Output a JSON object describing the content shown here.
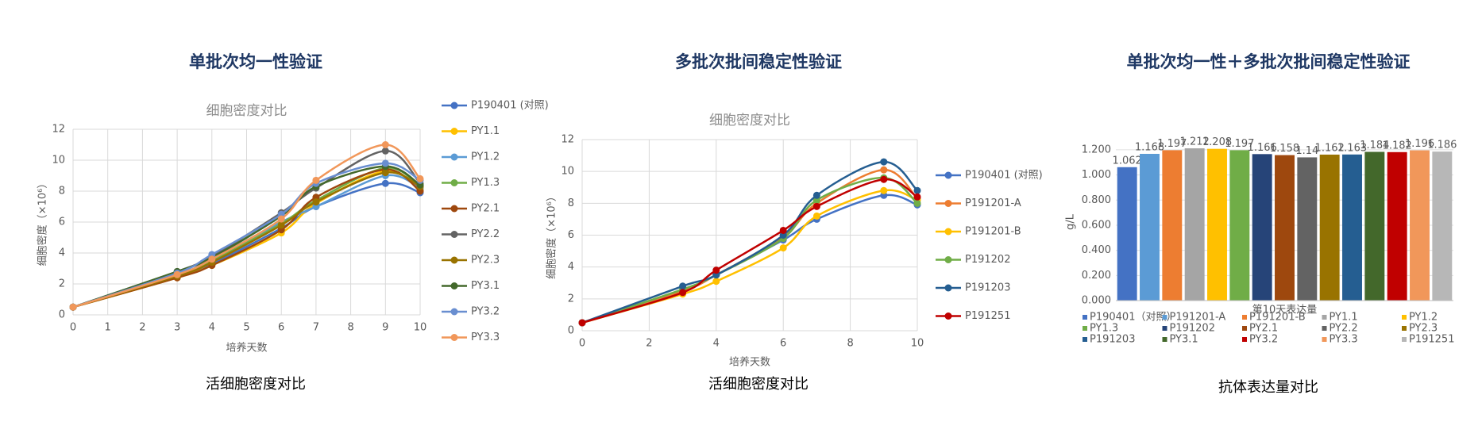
{
  "chart_data": [
    {
      "type": "line",
      "heading": "单批次均一性验证",
      "caption": "活细胞密度对比",
      "title": "细胞密度对比",
      "x_label": "培养天数",
      "y_label": "细胞密度（×10⁶）",
      "x": [
        0,
        3,
        4,
        6,
        7,
        9,
        10
      ],
      "xlim": [
        0,
        10
      ],
      "xticks": [
        0,
        1,
        2,
        3,
        4,
        5,
        6,
        7,
        8,
        9,
        10
      ],
      "ylim": [
        0,
        12
      ],
      "yticks": [
        0,
        2,
        4,
        6,
        8,
        10,
        12
      ],
      "grid": true,
      "series": [
        {
          "name": "P190401 (对照)",
          "color": "#4472c4",
          "values": [
            0.5,
            2.5,
            3.3,
            5.6,
            7.0,
            8.5,
            7.9
          ]
        },
        {
          "name": "PY1.1",
          "color": "#ffc000",
          "values": [
            0.5,
            2.4,
            3.2,
            5.3,
            7.2,
            9.3,
            8.1
          ]
        },
        {
          "name": "PY1.2",
          "color": "#5b9bd5",
          "values": [
            0.5,
            2.6,
            3.6,
            6.0,
            7.0,
            9.0,
            8.2
          ]
        },
        {
          "name": "PY1.3",
          "color": "#70ad47",
          "values": [
            0.5,
            2.6,
            3.5,
            5.9,
            7.4,
            9.5,
            8.3
          ]
        },
        {
          "name": "PY2.1",
          "color": "#9e480e",
          "values": [
            0.5,
            2.4,
            3.2,
            5.5,
            7.6,
            9.4,
            8.0
          ]
        },
        {
          "name": "PY2.2",
          "color": "#636363",
          "values": [
            0.5,
            2.8,
            3.8,
            6.6,
            8.2,
            10.6,
            8.5
          ]
        },
        {
          "name": "PY2.3",
          "color": "#997300",
          "values": [
            0.5,
            2.5,
            3.4,
            5.8,
            7.3,
            9.2,
            8.3
          ]
        },
        {
          "name": "PY3.1",
          "color": "#43682b",
          "values": [
            0.5,
            2.8,
            3.7,
            6.4,
            8.3,
            9.6,
            8.4
          ]
        },
        {
          "name": "PY3.2",
          "color": "#698ed0",
          "values": [
            0.5,
            2.7,
            3.9,
            6.5,
            8.5,
            9.8,
            8.7
          ]
        },
        {
          "name": "PY3.3",
          "color": "#f1975a",
          "values": [
            0.5,
            2.6,
            3.6,
            6.2,
            8.7,
            11.0,
            8.8
          ]
        }
      ]
    },
    {
      "type": "line",
      "heading": "多批次批间稳定性验证",
      "caption": "活细胞密度对比",
      "title": "细胞密度对比",
      "x_label": "培养天数",
      "y_label": "细胞密度（×10⁶）",
      "x": [
        0,
        3,
        4,
        6,
        7,
        9,
        10
      ],
      "xlim": [
        0,
        10
      ],
      "xticks": [
        0,
        2,
        4,
        6,
        8,
        10
      ],
      "ylim": [
        0,
        12
      ],
      "yticks": [
        0,
        2,
        4,
        6,
        8,
        10,
        12
      ],
      "grid": true,
      "series": [
        {
          "name": "P190401 (对照)",
          "color": "#4472c4",
          "values": [
            0.5,
            2.5,
            3.5,
            5.7,
            7.0,
            8.5,
            7.9
          ]
        },
        {
          "name": "P191201-A",
          "color": "#ed7d31",
          "values": [
            0.5,
            2.5,
            3.5,
            5.9,
            8.0,
            10.1,
            8.3
          ]
        },
        {
          "name": "P191201-B",
          "color": "#ffc000",
          "values": [
            0.5,
            2.3,
            3.1,
            5.2,
            7.2,
            8.8,
            8.2
          ]
        },
        {
          "name": "P191202",
          "color": "#70ad47",
          "values": [
            0.5,
            2.6,
            3.5,
            5.8,
            8.2,
            9.6,
            8.0
          ]
        },
        {
          "name": "P191203",
          "color": "#255e91",
          "values": [
            0.5,
            2.8,
            3.5,
            6.0,
            8.5,
            10.6,
            8.8
          ]
        },
        {
          "name": "P191251",
          "color": "#c00000",
          "values": [
            0.5,
            2.4,
            3.8,
            6.3,
            7.8,
            9.5,
            8.4
          ]
        }
      ]
    },
    {
      "type": "bar",
      "heading": "单批次均一性＋多批次批间稳定性验证",
      "caption": "抗体表达量对比",
      "x_label": "第10天表达量",
      "y_label": "g/L",
      "categories": [
        "第10天表达量"
      ],
      "ylim": [
        0,
        1.25
      ],
      "yticks": [
        {
          "value": 0,
          "label": "0.000"
        },
        {
          "value": 0.2,
          "label": "0.200"
        },
        {
          "value": 0.4,
          "label": "0.400"
        },
        {
          "value": 0.6,
          "label": "0.600"
        },
        {
          "value": 0.8,
          "label": "0.800"
        },
        {
          "value": 1.0,
          "label": "1.000"
        },
        {
          "value": 1.2,
          "label": "1.200"
        }
      ],
      "grid": true,
      "series": [
        {
          "name": "P190401（对照）",
          "color": "#4472c4",
          "values": [
            1.062
          ]
        },
        {
          "name": "P191201-A",
          "color": "#5b9bd5",
          "values": [
            1.168
          ]
        },
        {
          "name": "P191201-B",
          "color": "#ed7d31",
          "values": [
            1.197
          ]
        },
        {
          "name": "PY1.1",
          "color": "#a5a5a5",
          "values": [
            1.212
          ]
        },
        {
          "name": "PY1.2",
          "color": "#ffc000",
          "values": [
            1.208
          ]
        },
        {
          "name": "PY1.3",
          "color": "#70ad47",
          "values": [
            1.197
          ]
        },
        {
          "name": "P191202",
          "color": "#264478",
          "values": [
            1.166
          ]
        },
        {
          "name": "PY2.1",
          "color": "#9e480e",
          "values": [
            1.158
          ]
        },
        {
          "name": "PY2.2",
          "color": "#636363",
          "values": [
            1.14
          ]
        },
        {
          "name": "PY2.3",
          "color": "#997300",
          "values": [
            1.162
          ]
        },
        {
          "name": "P191203",
          "color": "#255e91",
          "values": [
            1.163
          ]
        },
        {
          "name": "PY3.1",
          "color": "#43682b",
          "values": [
            1.184
          ]
        },
        {
          "name": "PY3.2",
          "color": "#c00000",
          "values": [
            1.182
          ]
        },
        {
          "name": "PY3.3",
          "color": "#f1975a",
          "values": [
            1.196
          ]
        },
        {
          "name": "P191251",
          "color": "#b7b7b7",
          "values": [
            1.186
          ]
        }
      ]
    }
  ]
}
